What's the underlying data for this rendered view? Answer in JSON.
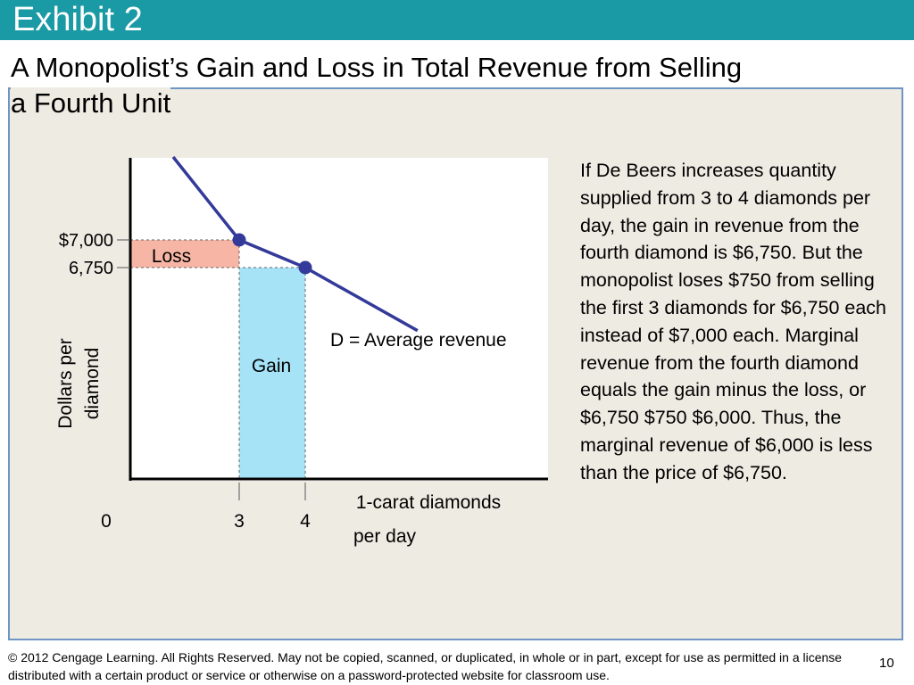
{
  "header": {
    "exhibit": "Exhibit 2",
    "title_line1": "A Monopolist’s Gain and Loss in Total Revenue from Selling",
    "title_line2": "a Fourth Unit"
  },
  "chart_data": {
    "type": "line",
    "ylabel": "Dollars per diamond",
    "ylabel_lines": [
      "Dollars per",
      "diamond"
    ],
    "xlabel": "1-carat diamonds per day",
    "xlabel_lines": [
      "1-carat diamonds",
      "per day"
    ],
    "x_ticks": [
      "0",
      "3",
      "4"
    ],
    "y_ticks": [
      "$7,000",
      "6,750"
    ],
    "series": [
      {
        "name": "D = Average revenue",
        "x": [
          2,
          3,
          4,
          5.7
        ],
        "y": [
          7750,
          7000,
          6750,
          6180
        ]
      }
    ],
    "points": [
      {
        "x": 3,
        "y": 7000
      },
      {
        "x": 4,
        "y": 6750
      }
    ],
    "regions": [
      {
        "label": "Loss",
        "x0": 0,
        "x1": 3,
        "y0": 6750,
        "y1": 7000,
        "color": "#f7b6a5"
      },
      {
        "label": "Gain",
        "x0": 3,
        "x1": 4,
        "y0": 0,
        "y1": 6750,
        "color": "#a6e3f7"
      }
    ],
    "line_color": "#343a9a"
  },
  "explanation": "If De Beers increases quantity supplied from 3 to 4 diamonds per day, the gain in revenue from the fourth diamond is $6,750. But the monopolist loses $750 from selling the first 3 diamonds for $6,750 each instead of $7,000 each. Marginal revenue from the fourth diamond equals the gain minus the loss, or $6,750 $750  $6,000. Thus, the marginal revenue of $6,000 is less than the price of $6,750.",
  "footer": {
    "copyright": "© 2012 Cengage Learning. All Rights Reserved. May not be copied, scanned, or duplicated, in whole or in part, except for use as permitted in a license distributed with a certain product or service or otherwise on a password-protected website for classroom use.",
    "page": "10"
  }
}
